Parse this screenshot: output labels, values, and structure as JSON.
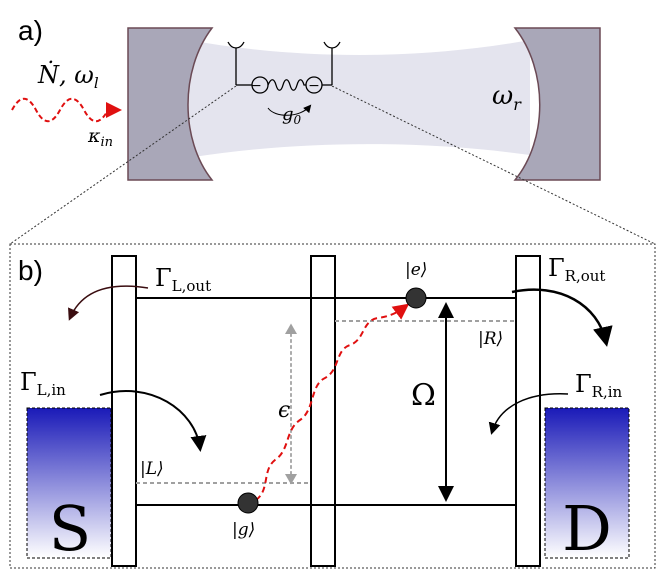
{
  "panel_a": {
    "label": "a)",
    "input_label": "Ṅ, ω",
    "input_label_sub": "l",
    "kappa_label": "κ",
    "kappa_sub": "in",
    "coupling_label": "g",
    "coupling_sub": "0",
    "resonator_label": "ω",
    "resonator_sub": "r",
    "charge_left": "−",
    "charge_right": "−"
  },
  "panel_b": {
    "label": "b)",
    "gamma_l_out": "Γ",
    "gamma_l_out_sub": "L,out",
    "gamma_r_out": "Γ",
    "gamma_r_out_sub": "R,out",
    "gamma_l_in": "Γ",
    "gamma_l_in_sub": "L,in",
    "gamma_r_in": "Γ",
    "gamma_r_in_sub": "R,in",
    "state_e": "|e⟩",
    "state_g": "|g⟩",
    "state_l": "|L⟩",
    "state_r": "|R⟩",
    "epsilon": "ϵ",
    "omega": "Ω",
    "source": "S",
    "drain": "D"
  },
  "colors": {
    "mirror": "#a9a7b8",
    "mirror_stroke": "#6b4a55",
    "cavity": "#e6e6f0",
    "photon": "#e01010",
    "lead_dark": "#1a1ab8",
    "lead_light": "#ffffff",
    "dashed_level": "#a0a0a0"
  }
}
